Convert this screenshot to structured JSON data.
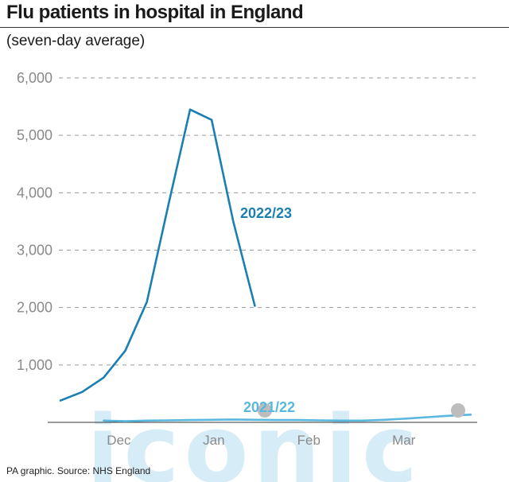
{
  "title": "Flu patients in hospital in England",
  "subtitle": "(seven-day average)",
  "source": "PA graphic. Source: NHS England",
  "watermark": "iconic",
  "colors": {
    "series_2022": "#1c7fb1",
    "series_2021": "#5ab7de",
    "grid": "#9a9a9a",
    "axis": "#333333",
    "tick_text": "#8a8a8a",
    "watermark": "#cfe9f6"
  },
  "chart_data": {
    "type": "line",
    "title": "Flu patients in hospital in England",
    "subtitle": "(seven-day average)",
    "ylim": [
      0,
      6000
    ],
    "y_ticks": [
      1000,
      2000,
      3000,
      4000,
      5000,
      6000
    ],
    "y_tick_labels": [
      "1,000",
      "2,000",
      "3,000",
      "4,000",
      "5,000",
      "6,000"
    ],
    "x_tick_labels": [
      "Dec",
      "Jan",
      "Feb",
      "Mar"
    ],
    "x_range_weeks_from_1_dec": [
      -2.3,
      17.3
    ],
    "grid": "horizontal dashed",
    "series": [
      {
        "name": "2022/23",
        "week_offsets": [
          -2,
          -1,
          0,
          1,
          2,
          3,
          4,
          5,
          6,
          7,
          8
        ],
        "values": [
          380,
          530,
          780,
          1250,
          2100,
          3800,
          5450,
          5270,
          3500,
          2030,
          null
        ]
      },
      {
        "name": "2021/22",
        "week_offsets": [
          0,
          1,
          2,
          3,
          4,
          5,
          6,
          7,
          8,
          9,
          10,
          11,
          12,
          13,
          14,
          15,
          16,
          17
        ],
        "values": [
          30,
          20,
          30,
          35,
          40,
          45,
          50,
          45,
          40,
          40,
          35,
          30,
          30,
          45,
          65,
          90,
          115,
          135
        ]
      }
    ]
  }
}
